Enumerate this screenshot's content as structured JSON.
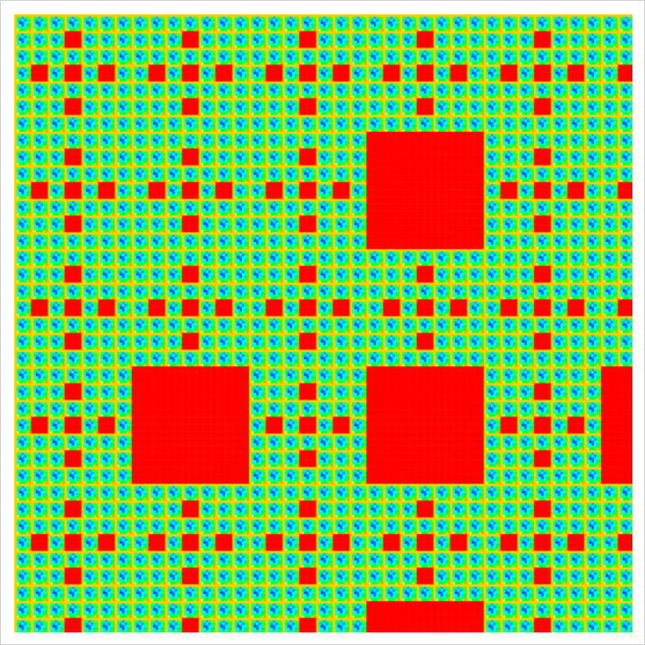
{
  "image": {
    "kind": "fractal-carpet",
    "hole_color": "#ff0000",
    "background_color": "#ffffff",
    "hole_pattern_7x7": [
      [
        1,
        3
      ],
      [
        3,
        1
      ],
      [
        3,
        3
      ],
      [
        3,
        5
      ],
      [
        5,
        3
      ]
    ],
    "colormap": [
      "#0000ff",
      "#00ffff",
      "#00ff00",
      "#ffff00",
      "#ff8000"
    ]
  }
}
